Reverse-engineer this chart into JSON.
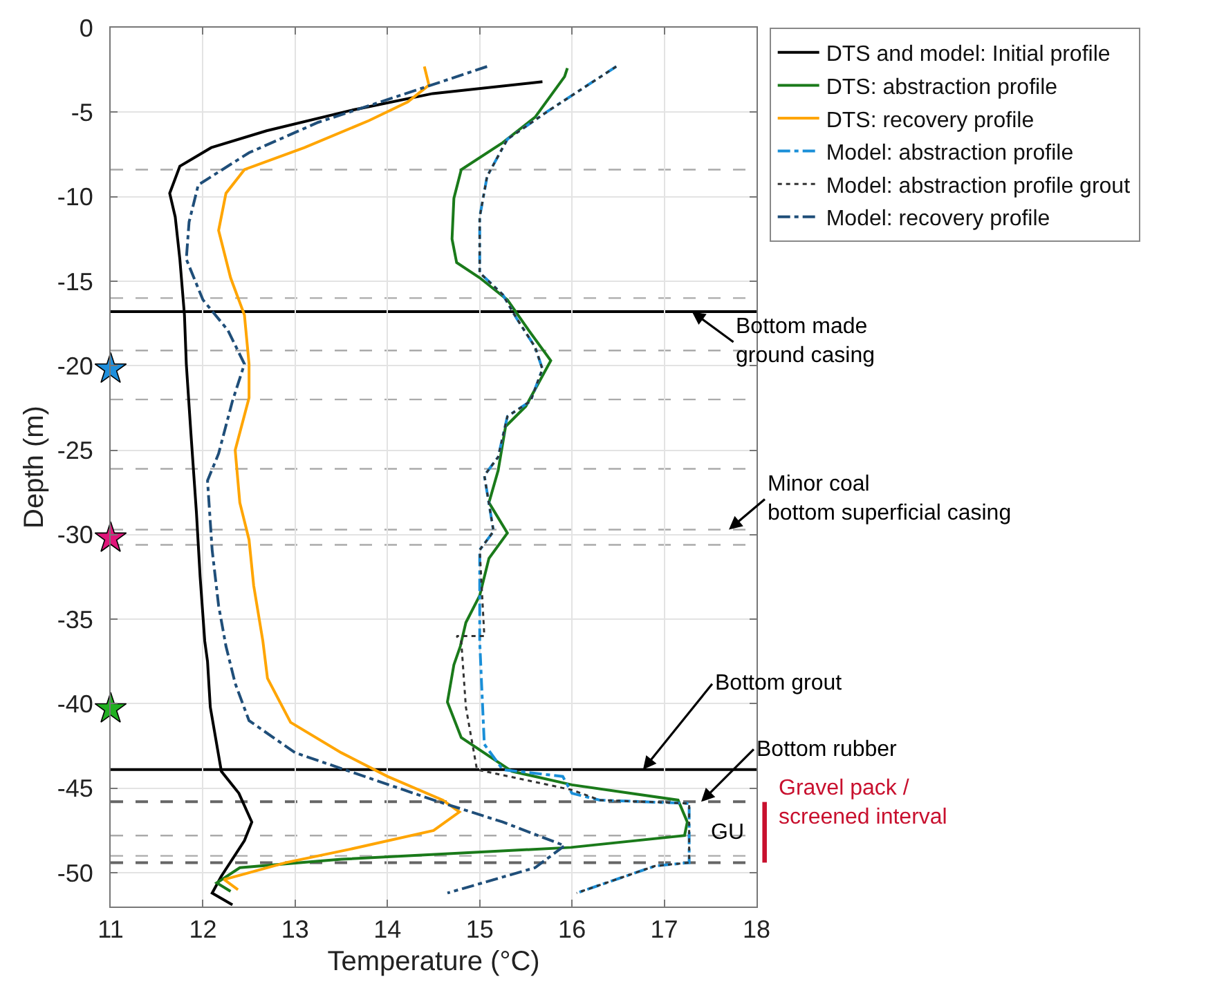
{
  "chart_data": {
    "type": "line",
    "xlabel": "Temperature (°C)",
    "ylabel": "Depth (m)",
    "xlim": [
      11,
      18
    ],
    "xticks": [
      11,
      12,
      13,
      14,
      15,
      16,
      17,
      18
    ],
    "ylim": [
      -52,
      0
    ],
    "yticks": [
      0,
      -5,
      -10,
      -15,
      -20,
      -25,
      -30,
      -35,
      -40,
      -45,
      -50
    ],
    "grid": true,
    "legend": "top right",
    "series": [
      {
        "name": "DTS and model: Initial profile",
        "color": "#000000",
        "line_style": "solid",
        "x": [
          15.68,
          14.49,
          13.6,
          12.69,
          12.09,
          11.75,
          11.64,
          11.7,
          11.75,
          11.8,
          11.82,
          11.87,
          11.93,
          11.97,
          12.02,
          12.05,
          12.08,
          12.2,
          12.39,
          12.53,
          12.45,
          12.2,
          12.1,
          12.32
        ],
        "values": [
          -3.2,
          -3.9,
          -4.9,
          -6.1,
          -7.1,
          -8.2,
          -9.8,
          -11.2,
          -13.7,
          -17.0,
          -19.9,
          -24.0,
          -28.7,
          -32.5,
          -36.3,
          -37.5,
          -40.2,
          -44.0,
          -45.3,
          -47.0,
          -48.1,
          -50.2,
          -51.2,
          -51.9
        ]
      },
      {
        "name": "DTS: abstraction profile",
        "color": "#1a7a1a",
        "line_style": "solid",
        "x": [
          15.95,
          15.92,
          15.6,
          15.25,
          14.8,
          14.72,
          14.7,
          14.75,
          15.0,
          15.3,
          15.53,
          15.77,
          15.5,
          15.28,
          15.2,
          15.1,
          15.3,
          15.1,
          15.0,
          14.85,
          14.79,
          14.72,
          14.65,
          14.8,
          15.35,
          16.0,
          17.15,
          17.25,
          17.22,
          15.99,
          13.5,
          12.4,
          12.15,
          12.3
        ],
        "values": [
          -2.4,
          -2.9,
          -5.3,
          -6.8,
          -8.4,
          -10.1,
          -12.5,
          -13.9,
          -14.8,
          -16.1,
          -17.9,
          -19.7,
          -22.4,
          -23.6,
          -26.2,
          -28.1,
          -29.9,
          -31.4,
          -33.6,
          -35.2,
          -36.6,
          -37.7,
          -39.9,
          -42.0,
          -44.0,
          -44.8,
          -45.7,
          -47.0,
          -47.8,
          -48.5,
          -49.2,
          -49.7,
          -50.6,
          -51.1
        ]
      },
      {
        "name": "DTS: recovery profile",
        "color": "#ffa500",
        "line_style": "solid",
        "x": [
          14.4,
          14.45,
          14.22,
          13.8,
          13.1,
          12.45,
          12.25,
          12.17,
          12.3,
          12.45,
          12.5,
          12.5,
          12.35,
          12.4,
          12.5,
          12.55,
          12.65,
          12.7,
          12.95,
          13.5,
          14.0,
          14.6,
          14.78,
          14.5,
          13.6,
          12.9,
          12.23,
          12.38
        ],
        "values": [
          -2.3,
          -3.4,
          -4.4,
          -5.5,
          -7.1,
          -8.4,
          -9.8,
          -12.0,
          -14.8,
          -17.0,
          -19.9,
          -21.9,
          -25.0,
          -28.1,
          -30.3,
          -33.0,
          -36.3,
          -38.5,
          -41.1,
          -42.9,
          -44.3,
          -45.7,
          -46.4,
          -47.5,
          -48.6,
          -49.4,
          -50.4,
          -51.0
        ]
      },
      {
        "name": "Model: abstraction profile",
        "color": "#1a8fd8",
        "line_style": "dashed",
        "x": [
          16.48,
          15.75,
          15.3,
          15.08,
          15.0,
          15.0,
          15.25,
          15.4,
          15.6,
          15.68,
          15.55,
          15.3,
          15.2,
          15.05,
          15.15,
          15.0,
          15.0,
          15.02,
          15.05,
          15.25,
          15.9,
          16.0,
          16.3,
          17.27,
          17.27,
          16.9,
          16.05
        ],
        "values": [
          -2.3,
          -4.9,
          -6.6,
          -8.8,
          -11.2,
          -14.5,
          -15.8,
          -17.2,
          -18.9,
          -20.2,
          -22.1,
          -23.0,
          -25.4,
          -26.5,
          -29.8,
          -30.9,
          -36.3,
          -38.8,
          -42.4,
          -43.9,
          -44.3,
          -45.3,
          -45.7,
          -45.9,
          -49.4,
          -49.6,
          -51.2
        ]
      },
      {
        "name": "Model: abstraction profile grout",
        "color": "#333333",
        "line_style": "dotted",
        "x": [
          16.48,
          15.75,
          15.3,
          15.08,
          15.0,
          15.0,
          15.25,
          15.4,
          15.6,
          15.68,
          15.55,
          15.3,
          15.2,
          15.05,
          15.15,
          15.0,
          15.05,
          14.75,
          14.8,
          14.85,
          14.97,
          16.0,
          16.3,
          17.27,
          17.27,
          16.9,
          16.05
        ],
        "values": [
          -2.3,
          -4.9,
          -6.6,
          -8.8,
          -11.2,
          -14.5,
          -15.8,
          -17.2,
          -18.9,
          -20.2,
          -22.1,
          -23.0,
          -25.4,
          -26.5,
          -29.8,
          -30.9,
          -36.0,
          -36.0,
          -36.3,
          -40.2,
          -43.9,
          -45.1,
          -45.7,
          -45.9,
          -49.4,
          -49.6,
          -51.2
        ]
      },
      {
        "name": "Model: recovery profile",
        "color": "#1f4e79",
        "line_style": "dashed",
        "x": [
          15.08,
          14.2,
          13.25,
          12.5,
          11.95,
          11.85,
          11.82,
          12.0,
          12.27,
          12.45,
          12.32,
          12.17,
          12.05,
          12.1,
          12.17,
          12.25,
          12.35,
          12.5,
          13.0,
          13.75,
          14.5,
          15.25,
          15.92,
          15.6,
          14.65
        ],
        "values": [
          -2.3,
          -3.9,
          -5.6,
          -7.4,
          -9.3,
          -11.5,
          -13.7,
          -16.1,
          -17.9,
          -19.9,
          -22.1,
          -25.2,
          -26.8,
          -30.9,
          -34.2,
          -36.6,
          -38.8,
          -41.0,
          -42.9,
          -44.3,
          -45.7,
          -47.0,
          -48.4,
          -49.7,
          -51.2
        ]
      },
      {
        "type": "scatter",
        "marker": "star",
        "colors": [
          "#1e8fdc",
          "#e0157a",
          "#22b022"
        ],
        "x": [
          11,
          11,
          11
        ],
        "values": [
          -20.2,
          -30.2,
          -40.3
        ]
      }
    ],
    "ref_lines": [
      {
        "axis": "y",
        "value": -8.4,
        "color": "#aaaaaa",
        "line_style": "dashed"
      },
      {
        "axis": "y",
        "value": -16.0,
        "color": "#aaaaaa",
        "line_style": "dashed"
      },
      {
        "axis": "y",
        "value": -16.8,
        "color": "#000000",
        "line_style": "solid"
      },
      {
        "axis": "y",
        "value": -19.1,
        "color": "#aaaaaa",
        "line_style": "dashed"
      },
      {
        "axis": "y",
        "value": -22.0,
        "color": "#aaaaaa",
        "line_style": "dashed"
      },
      {
        "axis": "y",
        "value": -26.1,
        "color": "#aaaaaa",
        "line_style": "dashed"
      },
      {
        "axis": "y",
        "value": -29.7,
        "color": "#aaaaaa",
        "line_style": "dashed"
      },
      {
        "axis": "y",
        "value": -30.6,
        "color": "#aaaaaa",
        "line_style": "dashed"
      },
      {
        "axis": "y",
        "value": -43.9,
        "color": "#000000",
        "line_style": "solid"
      },
      {
        "axis": "y",
        "value": -45.8,
        "color": "#666666",
        "line_style": "dashed"
      },
      {
        "axis": "y",
        "value": -47.8,
        "color": "#aaaaaa",
        "line_style": "dashed"
      },
      {
        "axis": "y",
        "value": -49.0,
        "color": "#aaaaaa",
        "line_style": "dashed"
      },
      {
        "axis": "y",
        "value": -49.4,
        "color": "#666666",
        "line_style": "dashed"
      }
    ],
    "annotations": [
      {
        "text": "Bottom made\nground casing",
        "x": 17.3,
        "y": -16.8
      },
      {
        "text": "Minor coal\nbottom superficial casing",
        "x": 17.7,
        "y": -29.7
      },
      {
        "text": "Bottom grout",
        "x": 16.77,
        "y": -43.9
      },
      {
        "text": "Bottom rubber",
        "x": 17.4,
        "y": -45.8
      },
      "GU",
      "Gravel pack /\nscreened interval"
    ]
  }
}
